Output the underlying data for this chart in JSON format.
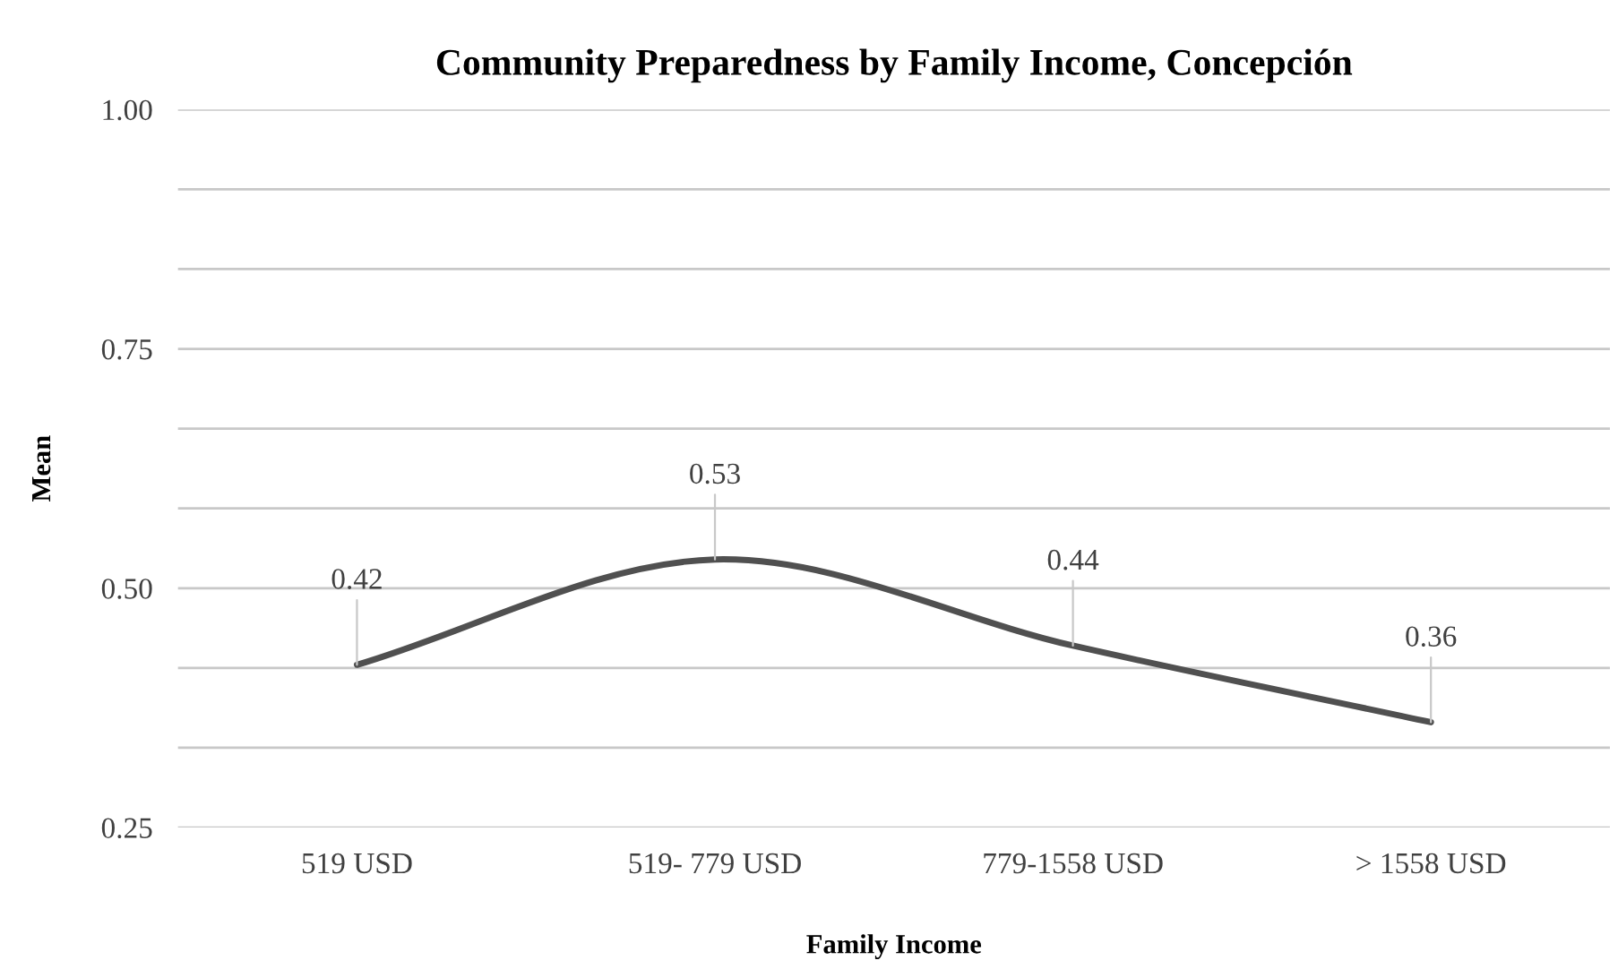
{
  "chart_data": {
    "type": "line",
    "title": "Community Preparedness by Family Income, Concepción",
    "xlabel": "Family Income",
    "ylabel": "Mean",
    "categories": [
      "519 USD",
      "519- 779 USD",
      "779-1558 USD",
      "> 1558 USD"
    ],
    "series": [
      {
        "color": "#505050",
        "values": [
          0.42,
          0.53,
          0.44,
          0.36
        ]
      }
    ],
    "ylim": [
      0.25,
      1.0
    ],
    "yticks": [
      0.25,
      {
        "value": 0.3333,
        "label": null
      },
      {
        "value": 0.4167,
        "label": null
      },
      {
        "value": 0.5,
        "label": "0.50"
      },
      {
        "value": 0.5833,
        "label": null
      },
      {
        "value": 0.6667,
        "label": null
      },
      0.75,
      {
        "value": 0.8333,
        "label": null
      },
      {
        "value": 0.9167,
        "label": null
      },
      {
        "value": 1.0,
        "label": "1.00"
      }
    ],
    "grid": "y",
    "data_labels": true,
    "marker": "none",
    "line_style": "solid"
  }
}
